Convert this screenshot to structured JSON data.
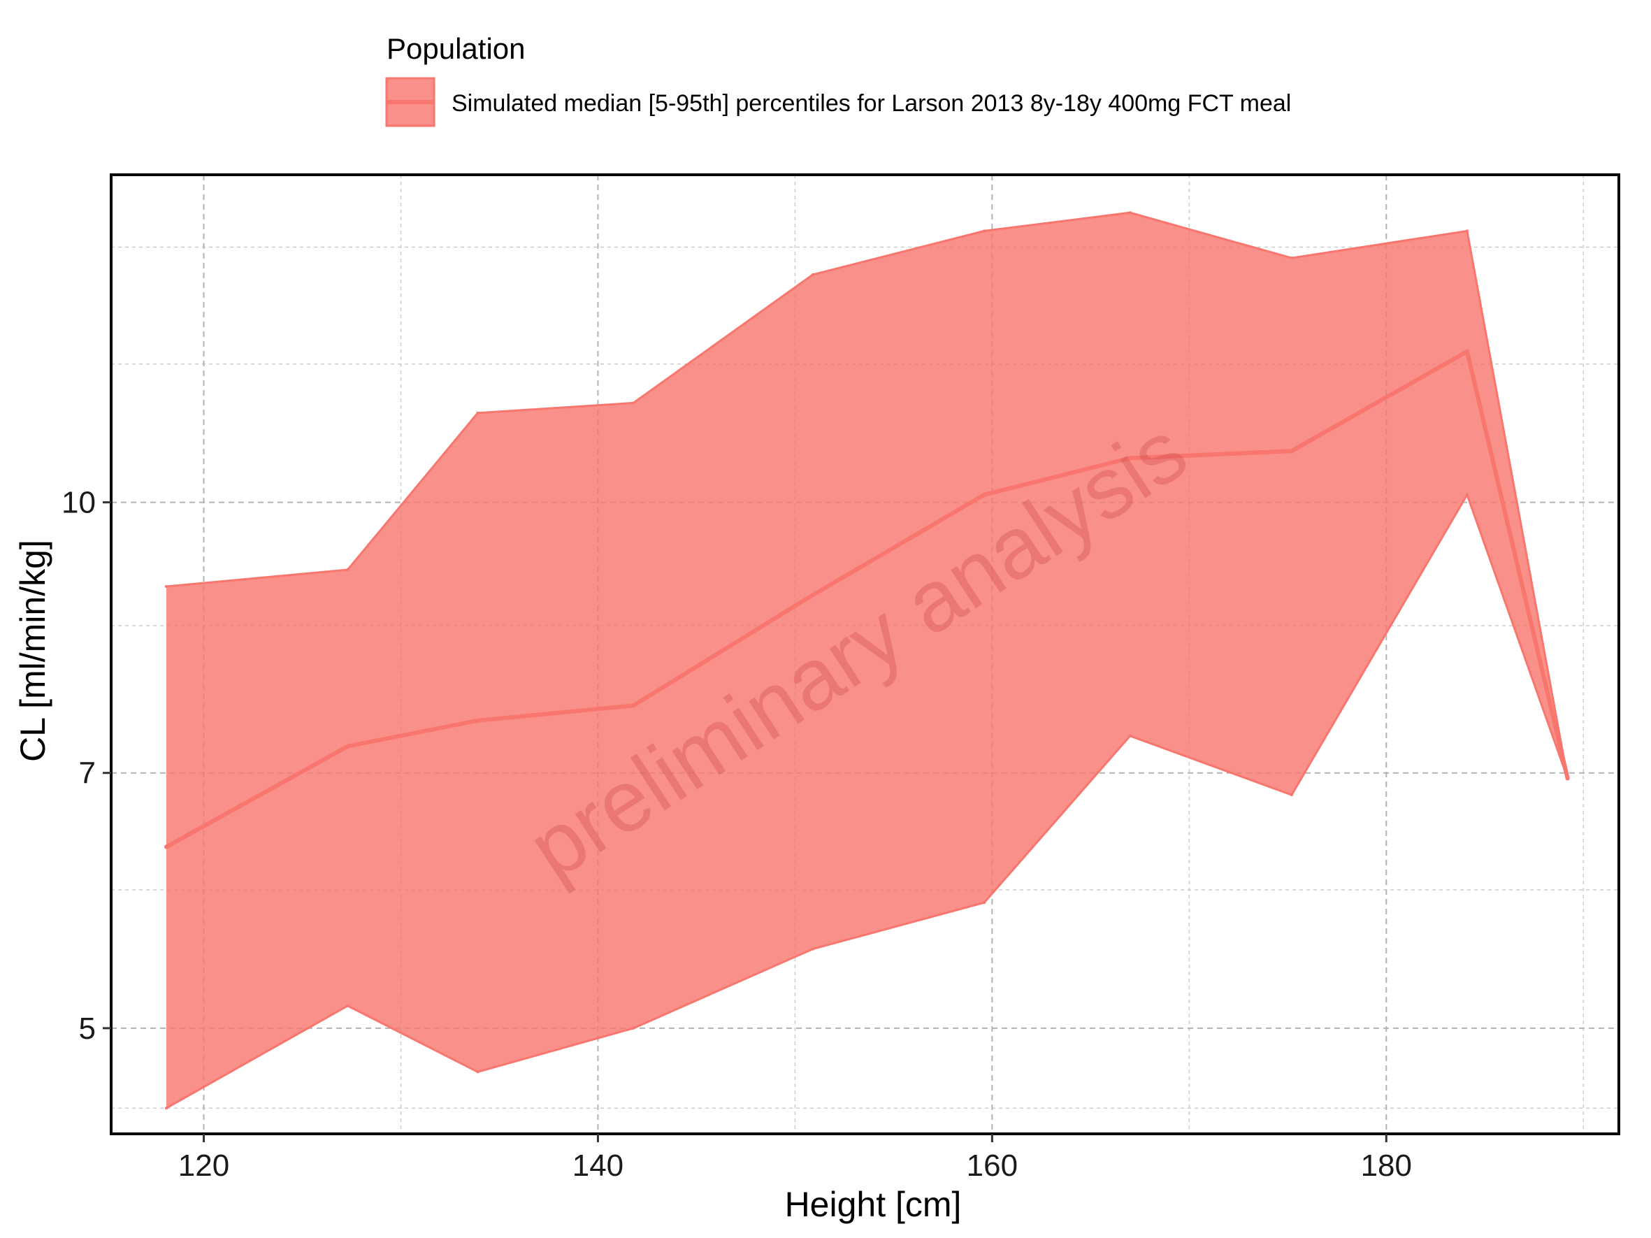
{
  "chart_data": {
    "type": "area",
    "xlabel": "Height [cm]",
    "ylabel": "CL [ml/min/kg]",
    "y_scale": "log",
    "xlim": [
      115.3,
      191.8
    ],
    "ylim": [
      4.35,
      15.4
    ],
    "x_ticks": [
      120,
      140,
      160,
      180
    ],
    "x_minor_ticks": [
      130,
      150,
      170,
      190
    ],
    "y_ticks": [
      5,
      7,
      10
    ],
    "y_minor_ticks": [
      4.5,
      6,
      8.5,
      12,
      14
    ],
    "grid": true,
    "legend": {
      "title": "Population",
      "position": "top",
      "entries": [
        {
          "label": "Simulated median [5-95th] percentiles for Larson 2013 8y-18y 400mg FCT meal"
        }
      ]
    },
    "watermark": "preliminary analysis",
    "colors": {
      "band_fill": "#f8766d",
      "band_fill_opacity": 0.8,
      "median_line": "#f8766d",
      "panel_border": "#000000",
      "grid_major": "#b3b3b3",
      "grid_minor": "#cccccc"
    },
    "series": [
      {
        "x": [
          118.1,
          127.3,
          133.9,
          141.8,
          150.9,
          159.6,
          167.0,
          175.2,
          184.1,
          189.2
        ],
        "median": [
          6.35,
          7.25,
          7.5,
          7.65,
          8.85,
          10.1,
          10.6,
          10.7,
          12.2,
          6.95
        ],
        "p5": [
          4.5,
          5.15,
          4.72,
          5.0,
          5.55,
          5.9,
          7.35,
          6.8,
          10.1,
          6.95
        ],
        "p95": [
          8.95,
          9.15,
          11.25,
          11.4,
          13.5,
          14.3,
          14.65,
          13.8,
          14.3,
          6.95
        ]
      }
    ]
  }
}
